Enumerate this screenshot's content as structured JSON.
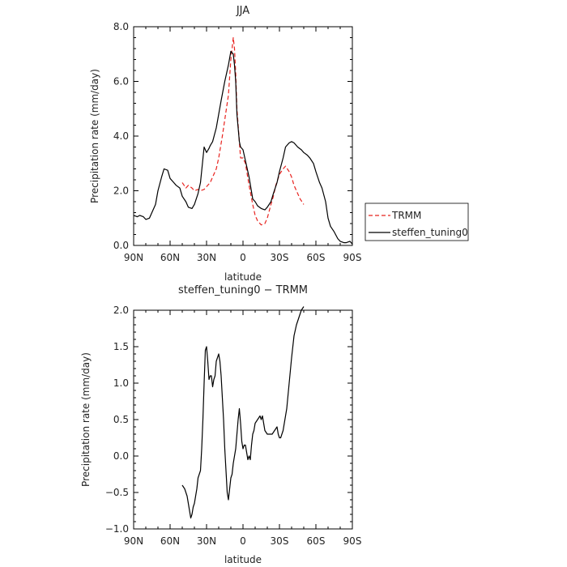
{
  "chart_data": [
    {
      "type": "line",
      "title": "JJA",
      "xlabel": "latitude",
      "ylabel": "Precipitation rate  (mm/day)",
      "xlim": [
        90,
        -90
      ],
      "ylim": [
        0,
        8
      ],
      "x_ticks": [
        90,
        60,
        30,
        0,
        -30,
        -60,
        -90
      ],
      "x_tick_labels": [
        "90N",
        "60N",
        "30N",
        "0",
        "30S",
        "60S",
        "90S"
      ],
      "y_ticks": [
        0,
        2,
        4,
        6,
        8
      ],
      "y_tick_labels": [
        "0.0",
        "2.0",
        "4.0",
        "6.0",
        "8.0"
      ],
      "legend_position": "right",
      "series": [
        {
          "name": "TRMM",
          "color": "#e8231f",
          "dash": "dashed",
          "x": [
            50,
            47,
            45,
            42,
            40,
            37,
            35,
            32,
            30,
            27,
            25,
            22,
            20,
            17,
            15,
            12,
            10,
            8,
            7,
            6,
            5,
            3,
            2,
            0,
            -2,
            -5,
            -8,
            -10,
            -12,
            -15,
            -18,
            -20,
            -23,
            -25,
            -27,
            -30,
            -33,
            -35,
            -38,
            -40,
            -42,
            -45,
            -47,
            -50
          ],
          "y": [
            2.3,
            2.1,
            2.2,
            2.1,
            2.0,
            2.05,
            2.0,
            2.05,
            2.15,
            2.3,
            2.5,
            2.8,
            3.2,
            4.0,
            4.6,
            5.5,
            6.8,
            7.6,
            7.2,
            6.3,
            5.0,
            3.8,
            3.2,
            3.2,
            3.0,
            2.2,
            1.5,
            1.1,
            0.9,
            0.75,
            0.8,
            1.0,
            1.5,
            1.8,
            2.2,
            2.6,
            2.8,
            2.9,
            2.7,
            2.5,
            2.2,
            1.9,
            1.7,
            1.5
          ]
        },
        {
          "name": "steffen_tuning0",
          "color": "#000000",
          "dash": "solid",
          "x": [
            90,
            87,
            85,
            82,
            80,
            77,
            75,
            72,
            70,
            67,
            65,
            62,
            60,
            57,
            55,
            52,
            50,
            47,
            45,
            42,
            40,
            37,
            35,
            32,
            30,
            28,
            27,
            25,
            22,
            20,
            18,
            15,
            12,
            10,
            8,
            7,
            6,
            5,
            3,
            2,
            0,
            -2,
            -5,
            -8,
            -10,
            -12,
            -15,
            -18,
            -20,
            -23,
            -25,
            -28,
            -30,
            -33,
            -35,
            -38,
            -40,
            -42,
            -45,
            -48,
            -50,
            -53,
            -55,
            -58,
            -60,
            -63,
            -65,
            -68,
            -70,
            -72,
            -75,
            -78,
            -80,
            -83,
            -85,
            -88,
            -90
          ],
          "y": [
            1.1,
            1.05,
            1.1,
            1.05,
            0.95,
            1.0,
            1.2,
            1.5,
            2.0,
            2.5,
            2.8,
            2.75,
            2.45,
            2.3,
            2.2,
            2.1,
            1.8,
            1.6,
            1.4,
            1.35,
            1.5,
            1.9,
            2.3,
            3.6,
            3.4,
            3.55,
            3.65,
            3.8,
            4.3,
            4.8,
            5.3,
            6.0,
            6.6,
            7.1,
            7.0,
            6.6,
            6.0,
            4.8,
            3.8,
            3.6,
            3.5,
            3.1,
            2.5,
            1.7,
            1.6,
            1.45,
            1.35,
            1.3,
            1.4,
            1.6,
            1.9,
            2.3,
            2.7,
            3.2,
            3.6,
            3.75,
            3.8,
            3.75,
            3.6,
            3.5,
            3.4,
            3.3,
            3.2,
            3.0,
            2.7,
            2.3,
            2.1,
            1.6,
            1.0,
            0.7,
            0.5,
            0.25,
            0.15,
            0.1,
            0.1,
            0.15,
            0.05
          ]
        }
      ]
    },
    {
      "type": "line",
      "title": "steffen_tuning0 − TRMM",
      "xlabel": "latitude",
      "ylabel": "Precipitation rate  (mm/day)",
      "xlim": [
        90,
        -90
      ],
      "ylim": [
        -1,
        2
      ],
      "x_ticks": [
        90,
        60,
        30,
        0,
        -30,
        -60,
        -90
      ],
      "x_tick_labels": [
        "90N",
        "60N",
        "30N",
        "0",
        "30S",
        "60S",
        "90S"
      ],
      "y_ticks": [
        -1,
        -0.5,
        0,
        0.5,
        1,
        1.5,
        2
      ],
      "y_tick_labels": [
        "−1.0",
        "−0.5",
        "0.0",
        "0.5",
        "1.0",
        "1.5",
        "2.0"
      ],
      "series": [
        {
          "color": "#000000",
          "dash": "solid",
          "x": [
            50,
            48,
            46,
            45,
            44,
            43,
            42,
            41,
            40,
            38,
            37,
            35,
            34,
            33,
            32,
            31,
            30,
            29,
            28,
            27,
            26,
            25,
            24,
            23,
            22,
            21,
            20,
            19,
            18,
            16,
            15,
            14,
            13,
            12,
            11,
            10,
            9,
            8,
            7,
            6,
            5,
            4,
            3,
            2,
            1,
            0,
            -1,
            -2,
            -3,
            -4,
            -5,
            -6,
            -7,
            -8,
            -9,
            -10,
            -12,
            -14,
            -15,
            -16,
            -17,
            -18,
            -20,
            -21,
            -22,
            -23,
            -24,
            -26,
            -28,
            -29,
            -30,
            -31,
            -32,
            -33,
            -34,
            -35,
            -36,
            -38,
            -40,
            -42,
            -44,
            -46,
            -48,
            -50
          ],
          "y": [
            -0.4,
            -0.45,
            -0.55,
            -0.65,
            -0.75,
            -0.85,
            -0.8,
            -0.7,
            -0.65,
            -0.45,
            -0.3,
            -0.2,
            0.1,
            0.5,
            1.0,
            1.45,
            1.5,
            1.3,
            1.05,
            1.1,
            1.1,
            0.95,
            1.05,
            1.1,
            1.3,
            1.35,
            1.4,
            1.3,
            1.1,
            0.5,
            0.1,
            -0.2,
            -0.5,
            -0.6,
            -0.45,
            -0.3,
            -0.25,
            -0.1,
            0.0,
            0.1,
            0.3,
            0.5,
            0.65,
            0.45,
            0.2,
            0.1,
            0.15,
            0.15,
            0.05,
            -0.05,
            0.0,
            -0.05,
            0.15,
            0.3,
            0.35,
            0.45,
            0.5,
            0.55,
            0.5,
            0.55,
            0.45,
            0.35,
            0.3,
            0.3,
            0.3,
            0.3,
            0.3,
            0.35,
            0.4,
            0.3,
            0.25,
            0.25,
            0.3,
            0.35,
            0.45,
            0.55,
            0.65,
            1.0,
            1.35,
            1.65,
            1.8,
            1.9,
            2.0,
            2.05
          ]
        }
      ]
    }
  ]
}
